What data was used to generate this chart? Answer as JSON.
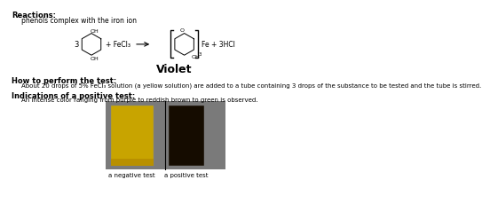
{
  "bg_color": "#ffffff",
  "title_reactions": "Reactions:",
  "subtitle_reaction": "phenols complex with the iron ion",
  "reaction_label": "Violet",
  "section2_title": "How to perform the test:",
  "section2_text": "About 20 drops of 5% FeCl₃ solution (a yellow solution) are added to a tube containing 3 drops of the substance to be tested and the tube is stirred.",
  "section3_title": "Indications of a positive test:",
  "section3_text": "An intense color ranging from purple to reddish brown to green is observed.",
  "caption_left": "a negative test",
  "caption_right": "a positive test",
  "image_bg": "#7a7a7a",
  "tube_left_color": "#c8a400",
  "tube_right_color": "#150c00",
  "tube_left_bottom": "#b89000",
  "reaction_3": "3",
  "reaction_fecl3": "+ FeCl₃",
  "reaction_right": "Fe + 3HCl",
  "phenol_oh1": "OH",
  "phenol_oh2": "OH",
  "product_o": "O",
  "product_oh": "OH",
  "bracket_sub": "3"
}
